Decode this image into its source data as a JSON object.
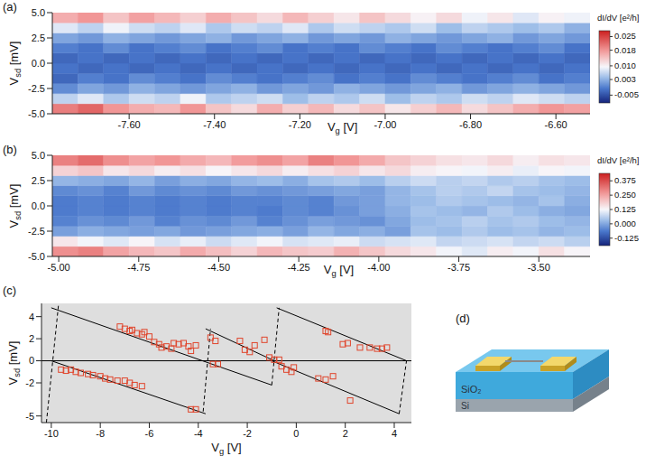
{
  "chart_data": [
    {
      "type": "heatmap",
      "label": "(a)",
      "x_label": "Vg [V]",
      "y_label": "Vsd [mV]",
      "xlim": [
        -7.78,
        -6.52
      ],
      "xticks": [
        {
          "value": -7.6,
          "label": "-7.60"
        },
        {
          "value": -7.4,
          "label": "-7.40"
        },
        {
          "value": -7.2,
          "label": "-7.20"
        },
        {
          "value": -7.0,
          "label": "-7.00"
        },
        {
          "value": -6.8,
          "label": "-6.80"
        },
        {
          "value": -6.6,
          "label": "-6.60"
        }
      ],
      "ylim": [
        -5,
        5
      ],
      "yticks": [
        {
          "value": 5,
          "label": "5.0"
        },
        {
          "value": 2.5,
          "label": "2.5"
        },
        {
          "value": 0,
          "label": "0.0"
        },
        {
          "value": -2.5,
          "label": "-2.5"
        },
        {
          "value": -5,
          "label": "-5.0"
        }
      ],
      "cells": {
        "x_edges": [
          -7.78,
          -7.72,
          -7.66,
          -7.6,
          -7.54,
          -7.48,
          -7.42,
          -7.36,
          -7.3,
          -7.24,
          -7.18,
          -7.12,
          -7.06,
          -7.0,
          -6.94,
          -6.88,
          -6.82,
          -6.76,
          -6.7,
          -6.64,
          -6.58,
          -6.52
        ],
        "y_edges": [
          -5,
          -4,
          -3,
          -2,
          -1,
          0,
          1,
          2,
          3,
          4,
          5
        ],
        "values": [
          [
            0.02,
            0.022,
            0.018,
            0.016,
            0.015,
            0.018,
            0.014,
            0.012,
            0.016,
            0.013,
            0.015,
            0.012,
            0.014,
            0.011,
            0.013,
            0.015,
            0.012,
            0.014,
            0.016,
            0.018,
            0.017
          ],
          [
            0.006,
            0.008,
            0.005,
            0.007,
            0.006,
            0.009,
            0.005,
            0.006,
            0.007,
            0.004,
            0.006,
            0.005,
            0.007,
            0.004,
            0.006,
            0.005,
            0.007,
            0.006,
            0.008,
            0.007,
            0.006
          ],
          [
            0.0,
            0.002,
            0.001,
            0.003,
            0.002,
            0.001,
            0.002,
            0.003,
            0.001,
            0.002,
            0.001,
            0.003,
            0.002,
            0.001,
            0.002,
            0.003,
            0.001,
            0.002,
            0.003,
            0.002,
            0.001
          ],
          [
            -0.003,
            -0.001,
            -0.002,
            0.0,
            -0.001,
            -0.002,
            0.0,
            -0.001,
            -0.002,
            -0.001,
            0.0,
            -0.002,
            -0.001,
            -0.002,
            0.0,
            -0.001,
            -0.002,
            -0.001,
            0.0,
            -0.002,
            -0.001
          ],
          [
            -0.002,
            -0.003,
            -0.002,
            -0.003,
            -0.002,
            -0.003,
            -0.002,
            -0.003,
            -0.002,
            -0.003,
            -0.002,
            -0.003,
            -0.002,
            -0.003,
            -0.002,
            -0.003,
            -0.002,
            -0.003,
            -0.002,
            -0.003,
            -0.002
          ],
          [
            -0.003,
            -0.002,
            -0.003,
            -0.002,
            -0.003,
            -0.002,
            -0.003,
            -0.002,
            -0.003,
            -0.002,
            -0.003,
            -0.002,
            -0.003,
            -0.002,
            -0.003,
            -0.002,
            -0.003,
            -0.002,
            -0.003,
            -0.002,
            -0.003
          ],
          [
            -0.001,
            -0.002,
            0.0,
            -0.002,
            -0.001,
            0.0,
            -0.002,
            -0.001,
            0.0,
            -0.002,
            -0.001,
            -0.002,
            0.0,
            -0.001,
            -0.002,
            0.0,
            -0.001,
            -0.002,
            -0.001,
            0.0,
            -0.002
          ],
          [
            0.002,
            0.001,
            0.003,
            0.002,
            0.001,
            0.002,
            0.003,
            0.001,
            0.002,
            0.003,
            0.001,
            0.002,
            0.001,
            0.003,
            0.002,
            0.001,
            0.002,
            0.003,
            0.001,
            0.002,
            0.001
          ],
          [
            0.008,
            0.006,
            0.009,
            0.007,
            0.006,
            0.008,
            0.005,
            0.007,
            0.006,
            0.008,
            0.005,
            0.007,
            0.006,
            0.005,
            0.007,
            0.004,
            0.006,
            0.005,
            0.004,
            0.005,
            0.003
          ],
          [
            0.016,
            0.018,
            0.014,
            0.017,
            0.015,
            0.013,
            0.016,
            0.014,
            0.012,
            0.015,
            0.013,
            0.011,
            0.014,
            0.012,
            0.01,
            0.012,
            0.009,
            0.011,
            0.008,
            0.01,
            0.009
          ]
        ]
      },
      "colorbar": {
        "label": "dI/dV [e²/h]",
        "range": [
          -0.009,
          0.028
        ],
        "ticks": [
          0.025,
          0.018,
          {
            "value": 0.01,
            "label": "0.010"
          },
          0.003,
          -0.005
        ]
      }
    },
    {
      "type": "heatmap",
      "label": "(b)",
      "x_label": "Vg [V]",
      "y_label": "Vsd [mV]",
      "xlim": [
        -5.02,
        -3.34
      ],
      "xticks": [
        {
          "value": -5.0,
          "label": "-5.00"
        },
        {
          "value": -4.75,
          "label": "-4.75"
        },
        {
          "value": -4.5,
          "label": "-4.50"
        },
        {
          "value": -4.25,
          "label": "-4.25"
        },
        {
          "value": -4.0,
          "label": "-4.00"
        },
        {
          "value": -3.75,
          "label": "-3.75"
        },
        {
          "value": -3.5,
          "label": "-3.50"
        }
      ],
      "ylim": [
        -5,
        5
      ],
      "yticks": [
        {
          "value": 5,
          "label": "5.0"
        },
        {
          "value": 2.5,
          "label": "2.5"
        },
        {
          "value": 0,
          "label": "0.0"
        },
        {
          "value": -2.5,
          "label": "-2.5"
        },
        {
          "value": -5,
          "label": "-5.0"
        }
      ],
      "cells": {
        "x_edges": [
          -5.02,
          -4.94,
          -4.86,
          -4.78,
          -4.7,
          -4.62,
          -4.54,
          -4.46,
          -4.38,
          -4.3,
          -4.22,
          -4.14,
          -4.06,
          -3.98,
          -3.9,
          -3.82,
          -3.74,
          -3.66,
          -3.58,
          -3.5,
          -3.42,
          -3.34
        ],
        "y_edges": [
          -5,
          -4,
          -3,
          -2,
          -1,
          0,
          1,
          2,
          3,
          4,
          5
        ],
        "values": [
          [
            0.28,
            0.3,
            0.25,
            0.22,
            0.2,
            0.24,
            0.21,
            0.18,
            0.22,
            0.2,
            0.19,
            0.23,
            0.2,
            0.17,
            0.15,
            0.12,
            0.1,
            0.14,
            0.12,
            0.16,
            0.13
          ],
          [
            0.15,
            0.12,
            0.1,
            0.13,
            0.09,
            0.11,
            0.08,
            0.1,
            0.12,
            0.09,
            0.1,
            0.11,
            0.08,
            0.09,
            0.1,
            0.07,
            0.08,
            0.09,
            0.07,
            0.08,
            0.06
          ],
          [
            -0.01,
            0.01,
            0.0,
            -0.01,
            0.0,
            -0.02,
            -0.01,
            0.0,
            0.01,
            -0.01,
            0.02,
            0.0,
            0.01,
            -0.01,
            0.04,
            0.03,
            0.05,
            0.03,
            0.04,
            0.02,
            0.03
          ],
          [
            -0.05,
            -0.03,
            -0.04,
            -0.02,
            -0.05,
            -0.03,
            -0.04,
            -0.02,
            -0.05,
            -0.03,
            -0.01,
            -0.02,
            -0.03,
            0.0,
            0.03,
            0.04,
            0.06,
            0.04,
            0.05,
            0.03,
            0.02
          ],
          [
            -0.06,
            -0.05,
            -0.06,
            -0.05,
            -0.06,
            -0.05,
            -0.06,
            -0.05,
            -0.06,
            -0.04,
            -0.05,
            -0.03,
            -0.01,
            0.01,
            0.04,
            0.03,
            0.02,
            0.05,
            0.03,
            0.01,
            0.0
          ],
          [
            -0.06,
            -0.05,
            -0.06,
            -0.05,
            -0.06,
            -0.05,
            -0.06,
            -0.05,
            -0.05,
            -0.04,
            -0.05,
            -0.02,
            -0.01,
            0.02,
            0.03,
            0.05,
            0.04,
            0.03,
            0.02,
            0.04,
            0.01
          ],
          [
            -0.04,
            -0.03,
            -0.05,
            -0.02,
            -0.04,
            -0.03,
            -0.04,
            -0.02,
            -0.03,
            -0.02,
            -0.01,
            0.0,
            -0.01,
            0.02,
            0.04,
            0.06,
            0.05,
            0.07,
            0.04,
            0.03,
            0.02
          ],
          [
            0.02,
            0.01,
            0.0,
            0.02,
            -0.01,
            0.01,
            0.0,
            0.02,
            0.03,
            0.01,
            0.04,
            0.05,
            0.03,
            0.06,
            0.08,
            0.06,
            0.07,
            0.05,
            0.06,
            0.04,
            0.03
          ],
          [
            0.18,
            0.2,
            0.15,
            0.17,
            0.14,
            0.16,
            0.13,
            0.15,
            0.17,
            0.14,
            0.16,
            0.18,
            0.15,
            0.17,
            0.14,
            0.13,
            0.12,
            0.14,
            0.11,
            0.13,
            0.12
          ],
          [
            0.3,
            0.33,
            0.28,
            0.25,
            0.27,
            0.24,
            0.22,
            0.26,
            0.28,
            0.25,
            0.3,
            0.27,
            0.24,
            0.2,
            0.18,
            0.16,
            0.15,
            0.17,
            0.14,
            0.16,
            0.15
          ]
        ]
      },
      "colorbar": {
        "label": "dI/dV [e²/h]",
        "range": [
          -0.19,
          0.44
        ],
        "ticks": [
          0.375,
          {
            "value": 0.25,
            "label": "0.250"
          },
          0.125,
          {
            "value": 0,
            "label": "0.000"
          },
          -0.125
        ]
      }
    },
    {
      "type": "scatter",
      "label": "(c)",
      "x_label": "Vg [V]",
      "y_label": "Vsd [mV]",
      "xlim": [
        -10.4,
        4.7
      ],
      "xticks": [
        -10,
        -8,
        -6,
        -4,
        -2,
        0,
        2,
        4
      ],
      "ylim": [
        -5.6,
        5.2
      ],
      "yticks": [
        4,
        2,
        0,
        -2,
        -5
      ],
      "x": [
        -9.6,
        -9.4,
        -9.2,
        -9.0,
        -8.8,
        -8.5,
        -8.3,
        -8.0,
        -7.8,
        -7.6,
        -7.3,
        -7.0,
        -6.8,
        -6.6,
        -6.3,
        -4.3,
        -4.1,
        -7.2,
        -7.0,
        -6.8,
        -6.7,
        -6.5,
        -6.3,
        -6.2,
        -6.0,
        -5.8,
        -5.6,
        -5.5,
        -5.3,
        -5.1,
        -5.0,
        -4.8,
        -4.6,
        -4.4,
        -4.3,
        -4.1,
        -3.5,
        -3.3,
        -3.4,
        -3.2,
        -2.3,
        -2.1,
        -1.9,
        -1.7,
        -1.3,
        -1.1,
        -0.9,
        -0.7,
        -0.6,
        -0.4,
        -0.2,
        -0.1,
        1.2,
        1.3,
        1.9,
        2.1,
        2.6,
        3.0,
        3.3,
        3.5,
        3.7,
        0.9,
        1.2,
        1.5,
        2.2
      ],
      "y": [
        -0.8,
        -0.9,
        -0.8,
        -1.0,
        -1.1,
        -1.2,
        -1.3,
        -1.4,
        -1.6,
        -1.7,
        -1.8,
        -1.8,
        -2.0,
        -2.2,
        -2.3,
        -4.4,
        -4.4,
        3.1,
        2.9,
        2.7,
        2.8,
        2.5,
        2.4,
        2.6,
        2.2,
        1.7,
        1.5,
        1.2,
        1.3,
        1.1,
        1.6,
        1.5,
        1.6,
        1.3,
        0.9,
        1.4,
        2.1,
        1.8,
        -0.3,
        -0.3,
        1.8,
        1.0,
        0.8,
        1.4,
        1.9,
        0.3,
        0.1,
        0.1,
        -0.5,
        -0.8,
        -1.0,
        -0.6,
        2.7,
        2.6,
        1.5,
        1.6,
        1.2,
        1.2,
        1.1,
        1.1,
        1.2,
        -1.6,
        -1.7,
        -1.4,
        -3.6
      ],
      "color": "#e0452c",
      "marker": "square",
      "lines": [
        {
          "x": [
            -10.4,
            4.7
          ],
          "y": [
            0,
            0
          ],
          "line_style": "solid",
          "color": "#000000"
        },
        {
          "x": [
            -10.0,
            -1.0
          ],
          "y": [
            4.8,
            -2.2
          ],
          "line_style": "solid",
          "color": "#000000"
        },
        {
          "x": [
            -3.7,
            -0.9
          ],
          "y": [
            2.9,
            0.0
          ],
          "line_style": "solid",
          "color": "#000000"
        },
        {
          "x": [
            -0.8,
            4.5
          ],
          "y": [
            4.8,
            0.0
          ],
          "line_style": "solid",
          "color": "#000000"
        },
        {
          "x": [
            -10.0,
            -3.7
          ],
          "y": [
            0.0,
            -4.8
          ],
          "line_style": "solid",
          "color": "#000000"
        },
        {
          "x": [
            -1.0,
            4.2
          ],
          "y": [
            0.0,
            -4.8
          ],
          "line_style": "solid",
          "color": "#000000"
        },
        {
          "x": [
            -10.2,
            -9.7
          ],
          "y": [
            -5.6,
            5.2
          ],
          "line_style": "dashed",
          "color": "#000000"
        },
        {
          "x": [
            -3.8,
            -3.5
          ],
          "y": [
            -4.6,
            2.9
          ],
          "line_style": "dashed",
          "color": "#000000"
        },
        {
          "x": [
            -1.0,
            -0.7
          ],
          "y": [
            -2.2,
            4.8
          ],
          "line_style": "dashed",
          "color": "#000000"
        },
        {
          "x": [
            4.2,
            4.5
          ],
          "y": [
            -4.8,
            0.0
          ],
          "line_style": "dashed",
          "color": "#000000"
        }
      ]
    }
  ],
  "diagram": {
    "label": "(d)",
    "layers": [
      "SiO₂",
      "Si"
    ]
  }
}
